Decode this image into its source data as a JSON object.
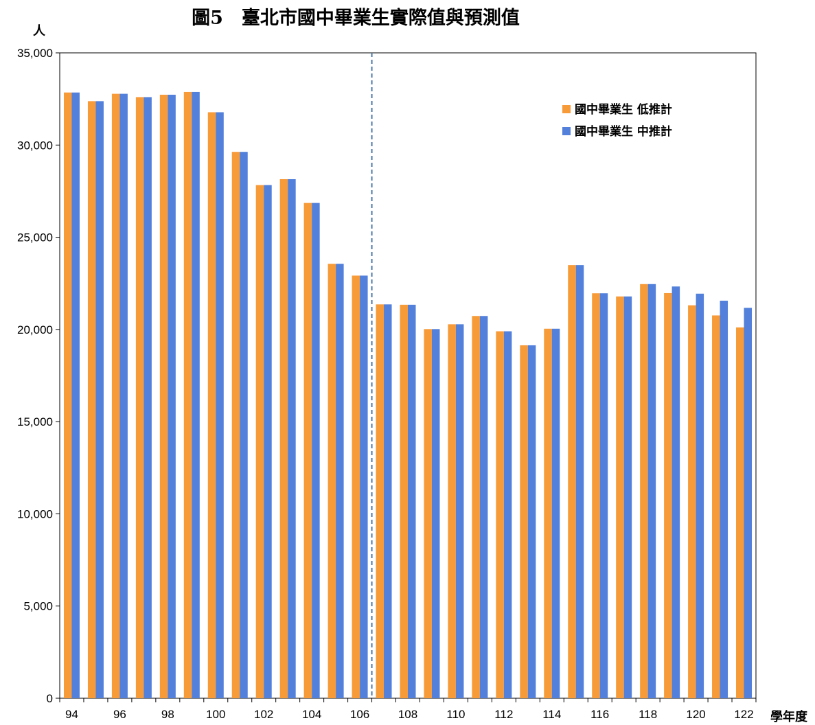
{
  "chart_data": {
    "type": "bar",
    "title": "圖5　臺北市國中畢業生實際值與預測值",
    "ylabel": "人",
    "xlabel": "學年度",
    "ylim": [
      0,
      35000
    ],
    "yticks": [
      0,
      5000,
      10000,
      15000,
      20000,
      25000,
      30000,
      35000
    ],
    "ytick_labels": [
      "0",
      "5,000",
      "10,000",
      "15,000",
      "20,000",
      "25,000",
      "30,000",
      "35,000"
    ],
    "categories": [
      "94",
      "95",
      "96",
      "97",
      "98",
      "99",
      "100",
      "101",
      "102",
      "103",
      "104",
      "105",
      "106",
      "107",
      "108",
      "109",
      "110",
      "111",
      "112",
      "113",
      "114",
      "115",
      "116",
      "117",
      "118",
      "119",
      "120",
      "121",
      "122"
    ],
    "xtick_labels": [
      "94",
      "96",
      "98",
      "100",
      "102",
      "104",
      "106",
      "108",
      "110",
      "112",
      "114",
      "116",
      "118",
      "120",
      "122"
    ],
    "divider_after": "106",
    "legend_position": "top-right",
    "grid": false,
    "series": [
      {
        "name": "國中畢業生 低推計",
        "color": "#F79A38",
        "values": [
          32850,
          32380,
          32780,
          32600,
          32730,
          32880,
          31780,
          29630,
          27830,
          28150,
          26860,
          23560,
          22920,
          21360,
          21340,
          20020,
          20280,
          20730,
          19900,
          19140,
          20040,
          23490,
          21960,
          21790,
          22460,
          21970,
          21310,
          20760,
          20110
        ]
      },
      {
        "name": "國中畢業生 中推計",
        "color": "#5280DA",
        "values": [
          32850,
          32380,
          32780,
          32600,
          32730,
          32880,
          31780,
          29630,
          27830,
          28150,
          26860,
          23560,
          22920,
          21360,
          21340,
          20020,
          20280,
          20730,
          19900,
          19140,
          20040,
          23490,
          21960,
          21790,
          22460,
          22330,
          21940,
          21560,
          21170
        ]
      }
    ]
  }
}
